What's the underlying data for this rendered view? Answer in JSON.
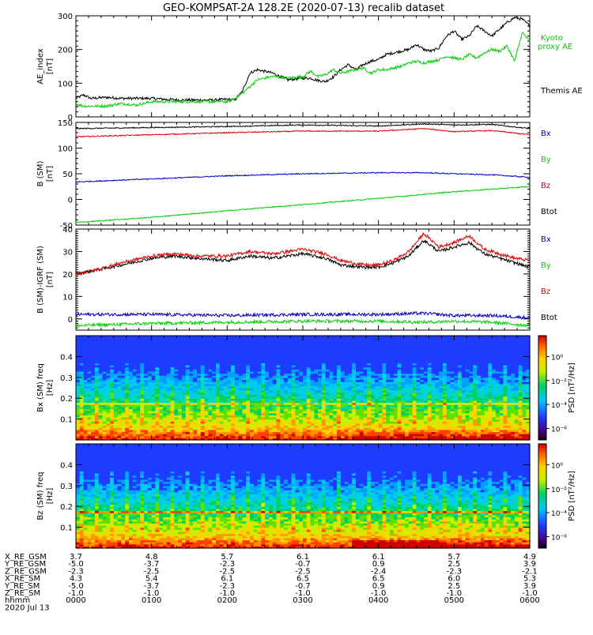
{
  "title": "GEO-KOMPSAT-2A 128.2E (2020-07-13) recalib dataset",
  "colors": {
    "black": "#000000",
    "red": "#e00000",
    "blue": "#0000c8",
    "green": "#00d000"
  },
  "chart_data": [
    {
      "type": "line",
      "panel": "ae",
      "ylabel": "AE_index [nT]",
      "ylim": [
        0,
        300
      ],
      "yticks": [
        "0",
        "100",
        "200",
        "300"
      ],
      "xlim": [
        0,
        6
      ],
      "series": [
        {
          "name": "Themis AE",
          "color": "black",
          "x": [
            0,
            0.1,
            0.2,
            0.4,
            0.6,
            0.8,
            1.0,
            1.2,
            1.4,
            1.6,
            1.8,
            2.0,
            2.1,
            2.2,
            2.3,
            2.4,
            2.6,
            2.8,
            3.0,
            3.1,
            3.2,
            3.3,
            3.4,
            3.5,
            3.6,
            3.7,
            3.8,
            3.9,
            4.0,
            4.1,
            4.2,
            4.3,
            4.4,
            4.5,
            4.6,
            4.7,
            4.8,
            4.9,
            5.0,
            5.1,
            5.2,
            5.3,
            5.4,
            5.5,
            5.6,
            5.7,
            5.8,
            5.9,
            6.0
          ],
          "y": [
            55,
            65,
            55,
            58,
            55,
            55,
            55,
            52,
            50,
            50,
            50,
            52,
            50,
            75,
            130,
            140,
            130,
            110,
            115,
            115,
            108,
            105,
            118,
            140,
            155,
            140,
            155,
            165,
            170,
            185,
            190,
            195,
            200,
            215,
            200,
            195,
            205,
            240,
            255,
            230,
            240,
            270,
            255,
            240,
            260,
            280,
            295,
            290,
            270
          ]
        },
        {
          "name": "Kyoto proxy AE",
          "color": "green",
          "x": [
            0,
            0.1,
            0.2,
            0.4,
            0.6,
            0.8,
            1.0,
            1.2,
            1.4,
            1.6,
            1.8,
            2.0,
            2.1,
            2.2,
            2.3,
            2.4,
            2.6,
            2.8,
            3.0,
            3.1,
            3.2,
            3.3,
            3.4,
            3.5,
            3.6,
            3.7,
            3.8,
            3.9,
            4.0,
            4.1,
            4.2,
            4.3,
            4.4,
            4.5,
            4.6,
            4.7,
            4.8,
            4.9,
            5.0,
            5.1,
            5.2,
            5.3,
            5.4,
            5.5,
            5.6,
            5.7,
            5.8,
            5.9,
            6.0
          ],
          "y": [
            38,
            32,
            32,
            32,
            40,
            35,
            45,
            45,
            45,
            45,
            45,
            45,
            55,
            70,
            90,
            110,
            120,
            115,
            120,
            135,
            120,
            125,
            140,
            130,
            135,
            140,
            145,
            130,
            140,
            140,
            145,
            150,
            160,
            165,
            160,
            165,
            170,
            180,
            175,
            170,
            185,
            175,
            190,
            200,
            195,
            210,
            165,
            250,
            225
          ]
        }
      ],
      "legend": [
        "Kyoto",
        "proxy AE",
        "Themis AE"
      ]
    },
    {
      "type": "line",
      "panel": "b",
      "ylabel": "B (SM) [nT]",
      "ylim": [
        -50,
        150
      ],
      "yticks": [
        "-50",
        "0",
        "50",
        "100",
        "150"
      ],
      "xlim": [
        0,
        6
      ],
      "series": [
        {
          "name": "Btot",
          "color": "black",
          "x": [
            0,
            1,
            2,
            3,
            4,
            4.6,
            5,
            5.5,
            6
          ],
          "y": [
            138,
            140,
            142,
            145,
            143,
            147,
            145,
            146,
            138
          ]
        },
        {
          "name": "Bz",
          "color": "red",
          "x": [
            0,
            1,
            2,
            3,
            4,
            4.6,
            5,
            5.5,
            6
          ],
          "y": [
            122,
            126,
            130,
            133,
            133,
            138,
            132,
            134,
            126
          ]
        },
        {
          "name": "Bx",
          "color": "blue",
          "x": [
            0,
            1,
            2,
            3,
            4,
            4.6,
            5,
            5.5,
            6
          ],
          "y": [
            34,
            40,
            46,
            50,
            52,
            52,
            50,
            48,
            43
          ]
        },
        {
          "name": "By",
          "color": "green",
          "x": [
            0,
            1,
            2,
            3,
            4,
            5,
            6
          ],
          "y": [
            -45,
            -35,
            -22,
            -10,
            2,
            15,
            25
          ]
        }
      ],
      "legend": [
        "Bx",
        "By",
        "Bz",
        "Btot"
      ]
    },
    {
      "type": "line",
      "panel": "dB",
      "ylabel": "B (SM)-IGRF (SM) [nT]",
      "ylim": [
        -5,
        40
      ],
      "yticks": [
        "0",
        "10",
        "20",
        "30",
        "40"
      ],
      "xlim": [
        0,
        6
      ],
      "series": [
        {
          "name": "Btot",
          "color": "black",
          "x": [
            0,
            0.3,
            0.6,
            1.0,
            1.3,
            1.6,
            2.0,
            2.3,
            2.6,
            3.0,
            3.3,
            3.5,
            3.8,
            4.0,
            4.2,
            4.4,
            4.6,
            4.8,
            5.0,
            5.2,
            5.4,
            5.6,
            5.8,
            6.0
          ],
          "y": [
            20,
            22,
            24,
            27,
            28,
            27,
            26,
            28,
            27,
            29,
            27,
            24,
            23,
            23,
            25,
            28,
            35,
            30,
            32,
            34,
            29,
            27,
            25,
            23
          ]
        },
        {
          "name": "Bz",
          "color": "red",
          "x": [
            0,
            0.3,
            0.6,
            1.0,
            1.3,
            1.6,
            2.0,
            2.3,
            2.6,
            3.0,
            3.3,
            3.5,
            3.8,
            4.0,
            4.2,
            4.4,
            4.6,
            4.8,
            5.0,
            5.2,
            5.4,
            5.6,
            5.8,
            6.0
          ],
          "y": [
            20,
            22,
            25,
            28,
            29,
            28,
            28,
            30,
            29,
            31,
            29,
            26,
            24,
            24,
            26,
            30,
            38,
            32,
            34,
            37,
            31,
            29,
            27,
            26
          ]
        },
        {
          "name": "Bx",
          "color": "blue",
          "x": [
            0,
            1,
            2,
            3,
            4,
            4.6,
            5,
            5.5,
            6
          ],
          "y": [
            2,
            2,
            1.5,
            2,
            2,
            2.5,
            1.5,
            1.5,
            0.5
          ]
        },
        {
          "name": "By",
          "color": "green",
          "x": [
            0,
            1,
            2,
            3,
            4,
            4.6,
            5,
            5.5,
            6
          ],
          "y": [
            -3,
            -2,
            -1.5,
            -1,
            -1,
            -1.5,
            -1,
            -1.5,
            -3
          ]
        }
      ],
      "legend": [
        "Bx",
        "By",
        "Bz",
        "Btot"
      ]
    },
    {
      "type": "heatmap",
      "panel": "specBx",
      "ylabel": "Bx (SM) freq [Hz]",
      "yticks": [
        "0.1",
        "0.2",
        "0.3",
        "0.4"
      ],
      "ylim": [
        0,
        0.5
      ],
      "colorbar": {
        "label": "PSD [nT²/Hz]",
        "ticks": [
          "10⁰",
          "10⁻²",
          "10⁻⁴",
          "10⁻⁶"
        ]
      }
    },
    {
      "type": "heatmap",
      "panel": "specBz",
      "ylabel": "Bz (SM) freq [Hz]",
      "yticks": [
        "0.1",
        "0.2",
        "0.3",
        "0.4"
      ],
      "ylim": [
        0,
        0.5
      ],
      "colorbar": {
        "label": "PSD [nT²/Hz]",
        "ticks": [
          "10⁰",
          "10⁻²",
          "10⁻⁴",
          "10⁻⁶"
        ]
      }
    }
  ],
  "ephemeris": {
    "labels": [
      "X_RE_GSM",
      "Y_RE_GSM",
      "Z_RE_GSM",
      "X_RE_SM",
      "Y_RE_SM",
      "Z_RE_SM",
      "hhmm",
      "2020 Jul 13"
    ],
    "columns": [
      [
        "3.7",
        "-5.0",
        "-2.3",
        "4.3",
        "-5.0",
        "-1.0",
        "0000"
      ],
      [
        "4.8",
        "-3.7",
        "-2.5",
        "5.4",
        "-3.7",
        "-1.0",
        "0100"
      ],
      [
        "5.7",
        "-2.3",
        "-2.5",
        "6.1",
        "-2.3",
        "-1.0",
        "0200"
      ],
      [
        "6.1",
        "-0.7",
        "-2.5",
        "6.5",
        "-0.7",
        "-1.0",
        "0300"
      ],
      [
        "6.1",
        "0.9",
        "-2.4",
        "6.5",
        "0.9",
        "-1.0",
        "0400"
      ],
      [
        "5.7",
        "2.5",
        "-2.3",
        "6.0",
        "2.5",
        "-1.0",
        "0500"
      ],
      [
        "4.9",
        "3.9",
        "-2.1",
        "5.3",
        "3.9",
        "-1.0",
        "0600"
      ]
    ]
  }
}
